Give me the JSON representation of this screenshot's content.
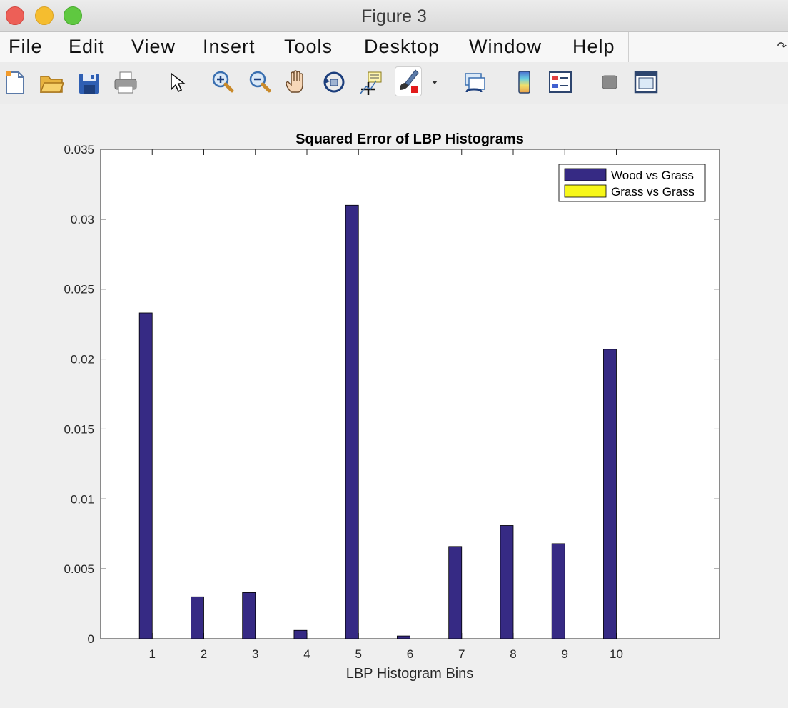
{
  "window": {
    "title": "Figure 3"
  },
  "menu": [
    "File",
    "Edit",
    "View",
    "Insert",
    "Tools",
    "Desktop",
    "Window",
    "Help"
  ],
  "toolbar": {
    "icons": [
      "new-figure-icon",
      "open-file-icon",
      "save-icon",
      "print-icon",
      "pointer-icon",
      "zoom-in-icon",
      "zoom-out-icon",
      "pan-hand-icon",
      "rotate-3d-icon",
      "data-cursor-icon",
      "brush-icon",
      "brush-dropdown-icon",
      "link-plot-icon",
      "colorbar-icon",
      "legend-icon",
      "hide-plot-tools-icon",
      "show-plot-tools-icon"
    ]
  },
  "colors": {
    "series1": "#362a84",
    "series2": "#f7f719"
  },
  "chart_data": {
    "type": "bar",
    "title": "Squared Error of LBP Histograms",
    "xlabel": "LBP Histogram Bins",
    "ylabel": "",
    "categories": [
      "1",
      "2",
      "3",
      "4",
      "5",
      "6",
      "7",
      "8",
      "9",
      "10"
    ],
    "xlim": [
      0,
      12
    ],
    "ylim": [
      0,
      0.035
    ],
    "yticks": [
      "0",
      "0.005",
      "0.01",
      "0.015",
      "0.02",
      "0.025",
      "0.03",
      "0.035"
    ],
    "legend_position": "top-right",
    "series": [
      {
        "name": "Wood vs Grass",
        "color": "#362a84",
        "values": [
          0.0233,
          0.003,
          0.0033,
          0.0006,
          0.031,
          0.0002,
          0.0066,
          0.0081,
          0.0068,
          0.0207
        ]
      },
      {
        "name": "Grass vs Grass",
        "color": "#f7f719",
        "values": [
          0,
          0,
          0,
          0,
          0,
          0,
          0,
          0,
          0,
          0
        ]
      }
    ]
  }
}
